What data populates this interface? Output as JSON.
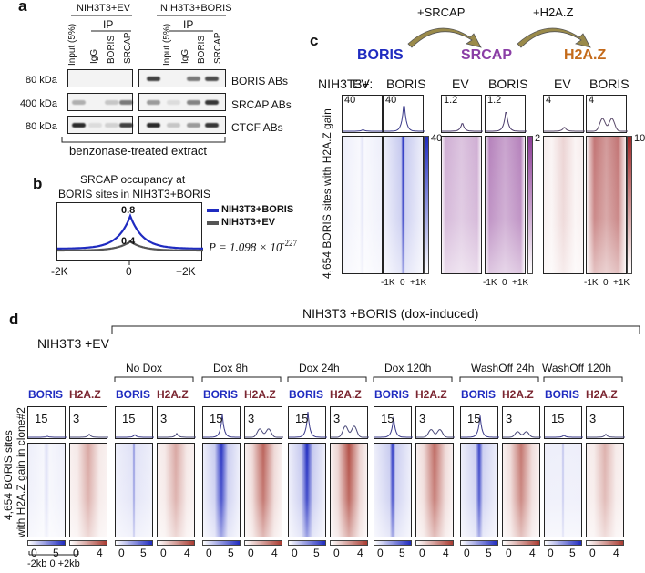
{
  "panel_a": {
    "label": "a",
    "group_ev": "NIH3T3+EV",
    "group_boris": "NIH3T3+BORIS",
    "ip_label": "IP",
    "lanes": [
      "Input (5%)",
      "IgG",
      "BORIS",
      "SRCAP"
    ],
    "sizes": [
      "80 kDa",
      "400 kDa",
      "80 kDa"
    ],
    "rows": [
      "BORIS ABs",
      "SRCAP ABs",
      "CTCF ABs"
    ],
    "footer": "benzonase-treated extract"
  },
  "panel_b": {
    "label": "b",
    "title_line1": "SRCAP occupancy at",
    "title_line2": "BORIS sites in NIH3T3+BORIS",
    "val_high": "0.8",
    "val_low": "0.4",
    "x_left": "-2K",
    "x_mid": "0",
    "x_right": "+2K",
    "legend_boris": "NIH3T3+BORIS",
    "legend_ev": "NIH3T3+EV",
    "p_value": "P = 1.098 × 10",
    "p_exp": "-227",
    "colors": {
      "boris": "#1f2bc0",
      "ev": "#555555"
    }
  },
  "panel_c": {
    "label": "c",
    "arrow1": "+SRCAP",
    "arrow2": "+H2A.Z",
    "head_boris": "BORIS",
    "head_srcap": "SRCAP",
    "head_h2az": "H2A.Z",
    "row_prefix": "NIH3T3+:",
    "ev": "EV",
    "boris": "BORIS",
    "profile_vals": [
      "40",
      "40",
      "1.2",
      "1.2",
      "4",
      "4"
    ],
    "scale_max": [
      "40",
      "2",
      "10"
    ],
    "axis_left": "-1K",
    "axis_mid": "0",
    "axis_right": "+1K",
    "ylabel": "4,654 BORIS sites with H2A.Z gain"
  },
  "panel_d": {
    "label": "d",
    "ev_title": "NIH3T3 +EV",
    "dox_title": "NIH3T3 +BORIS (dox-induced)",
    "conditions": [
      "No Dox",
      "Dox 8h",
      "Dox 24h",
      "Dox 120h",
      "WashOff 24h",
      "WashOff 120h"
    ],
    "track_boris": "BORIS",
    "track_h2az": "H2A.Z",
    "profile_boris": "15",
    "profile_h2az": "3",
    "scale_boris": [
      "0",
      "5"
    ],
    "scale_h2az": [
      "0",
      "4"
    ],
    "x_axis": "-2kb  0  +2kb",
    "ylabel_line1": "4,654 BORIS sites",
    "ylabel_line2": "with H2A.Z gain in clone#2"
  }
}
